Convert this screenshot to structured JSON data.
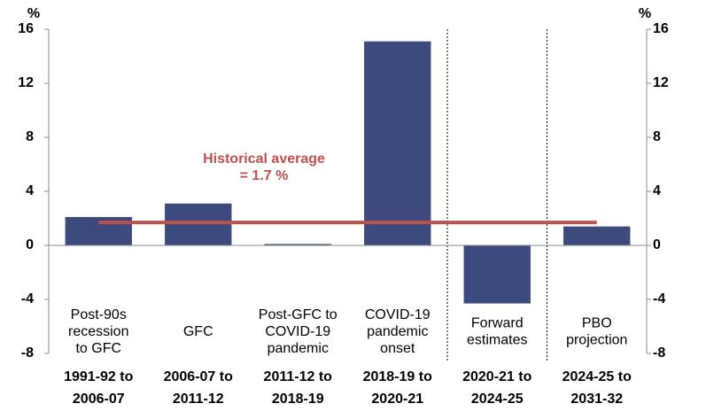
{
  "chart_data": {
    "type": "bar",
    "y_unit": "%",
    "categories": [
      [
        "1991-92 to",
        "2006-07"
      ],
      [
        "2006-07 to",
        "2011-12"
      ],
      [
        "2011-12 to",
        "2018-19"
      ],
      [
        "2018-19 to",
        "2020-21"
      ],
      [
        "2020-21 to",
        "2024-25"
      ],
      [
        "2024-25 to",
        "2031-32"
      ]
    ],
    "period_labels": [
      [
        "Post-90s",
        "recession",
        "to GFC"
      ],
      [
        "GFC"
      ],
      [
        "Post-GFC to",
        "COVID-19",
        "pandemic"
      ],
      [
        "COVID-19",
        "pandemic",
        "onset"
      ],
      [
        "Forward",
        "estimates"
      ],
      [
        "PBO",
        "projection"
      ]
    ],
    "values": [
      2.1,
      3.1,
      0.1,
      15.1,
      -4.3,
      1.4
    ],
    "color": "#3c4a7d",
    "reference_line": {
      "value": 1.7,
      "label": [
        "Historical average",
        "= 1.7 %"
      ],
      "color": "#c0504d"
    },
    "ylim": [
      -8,
      16
    ],
    "yticks": [
      -8,
      -4,
      0,
      4,
      8,
      12,
      16
    ],
    "y2lim": [
      -8,
      16
    ],
    "y2ticks": [
      -8,
      -4,
      0,
      4,
      8,
      12,
      16
    ]
  }
}
